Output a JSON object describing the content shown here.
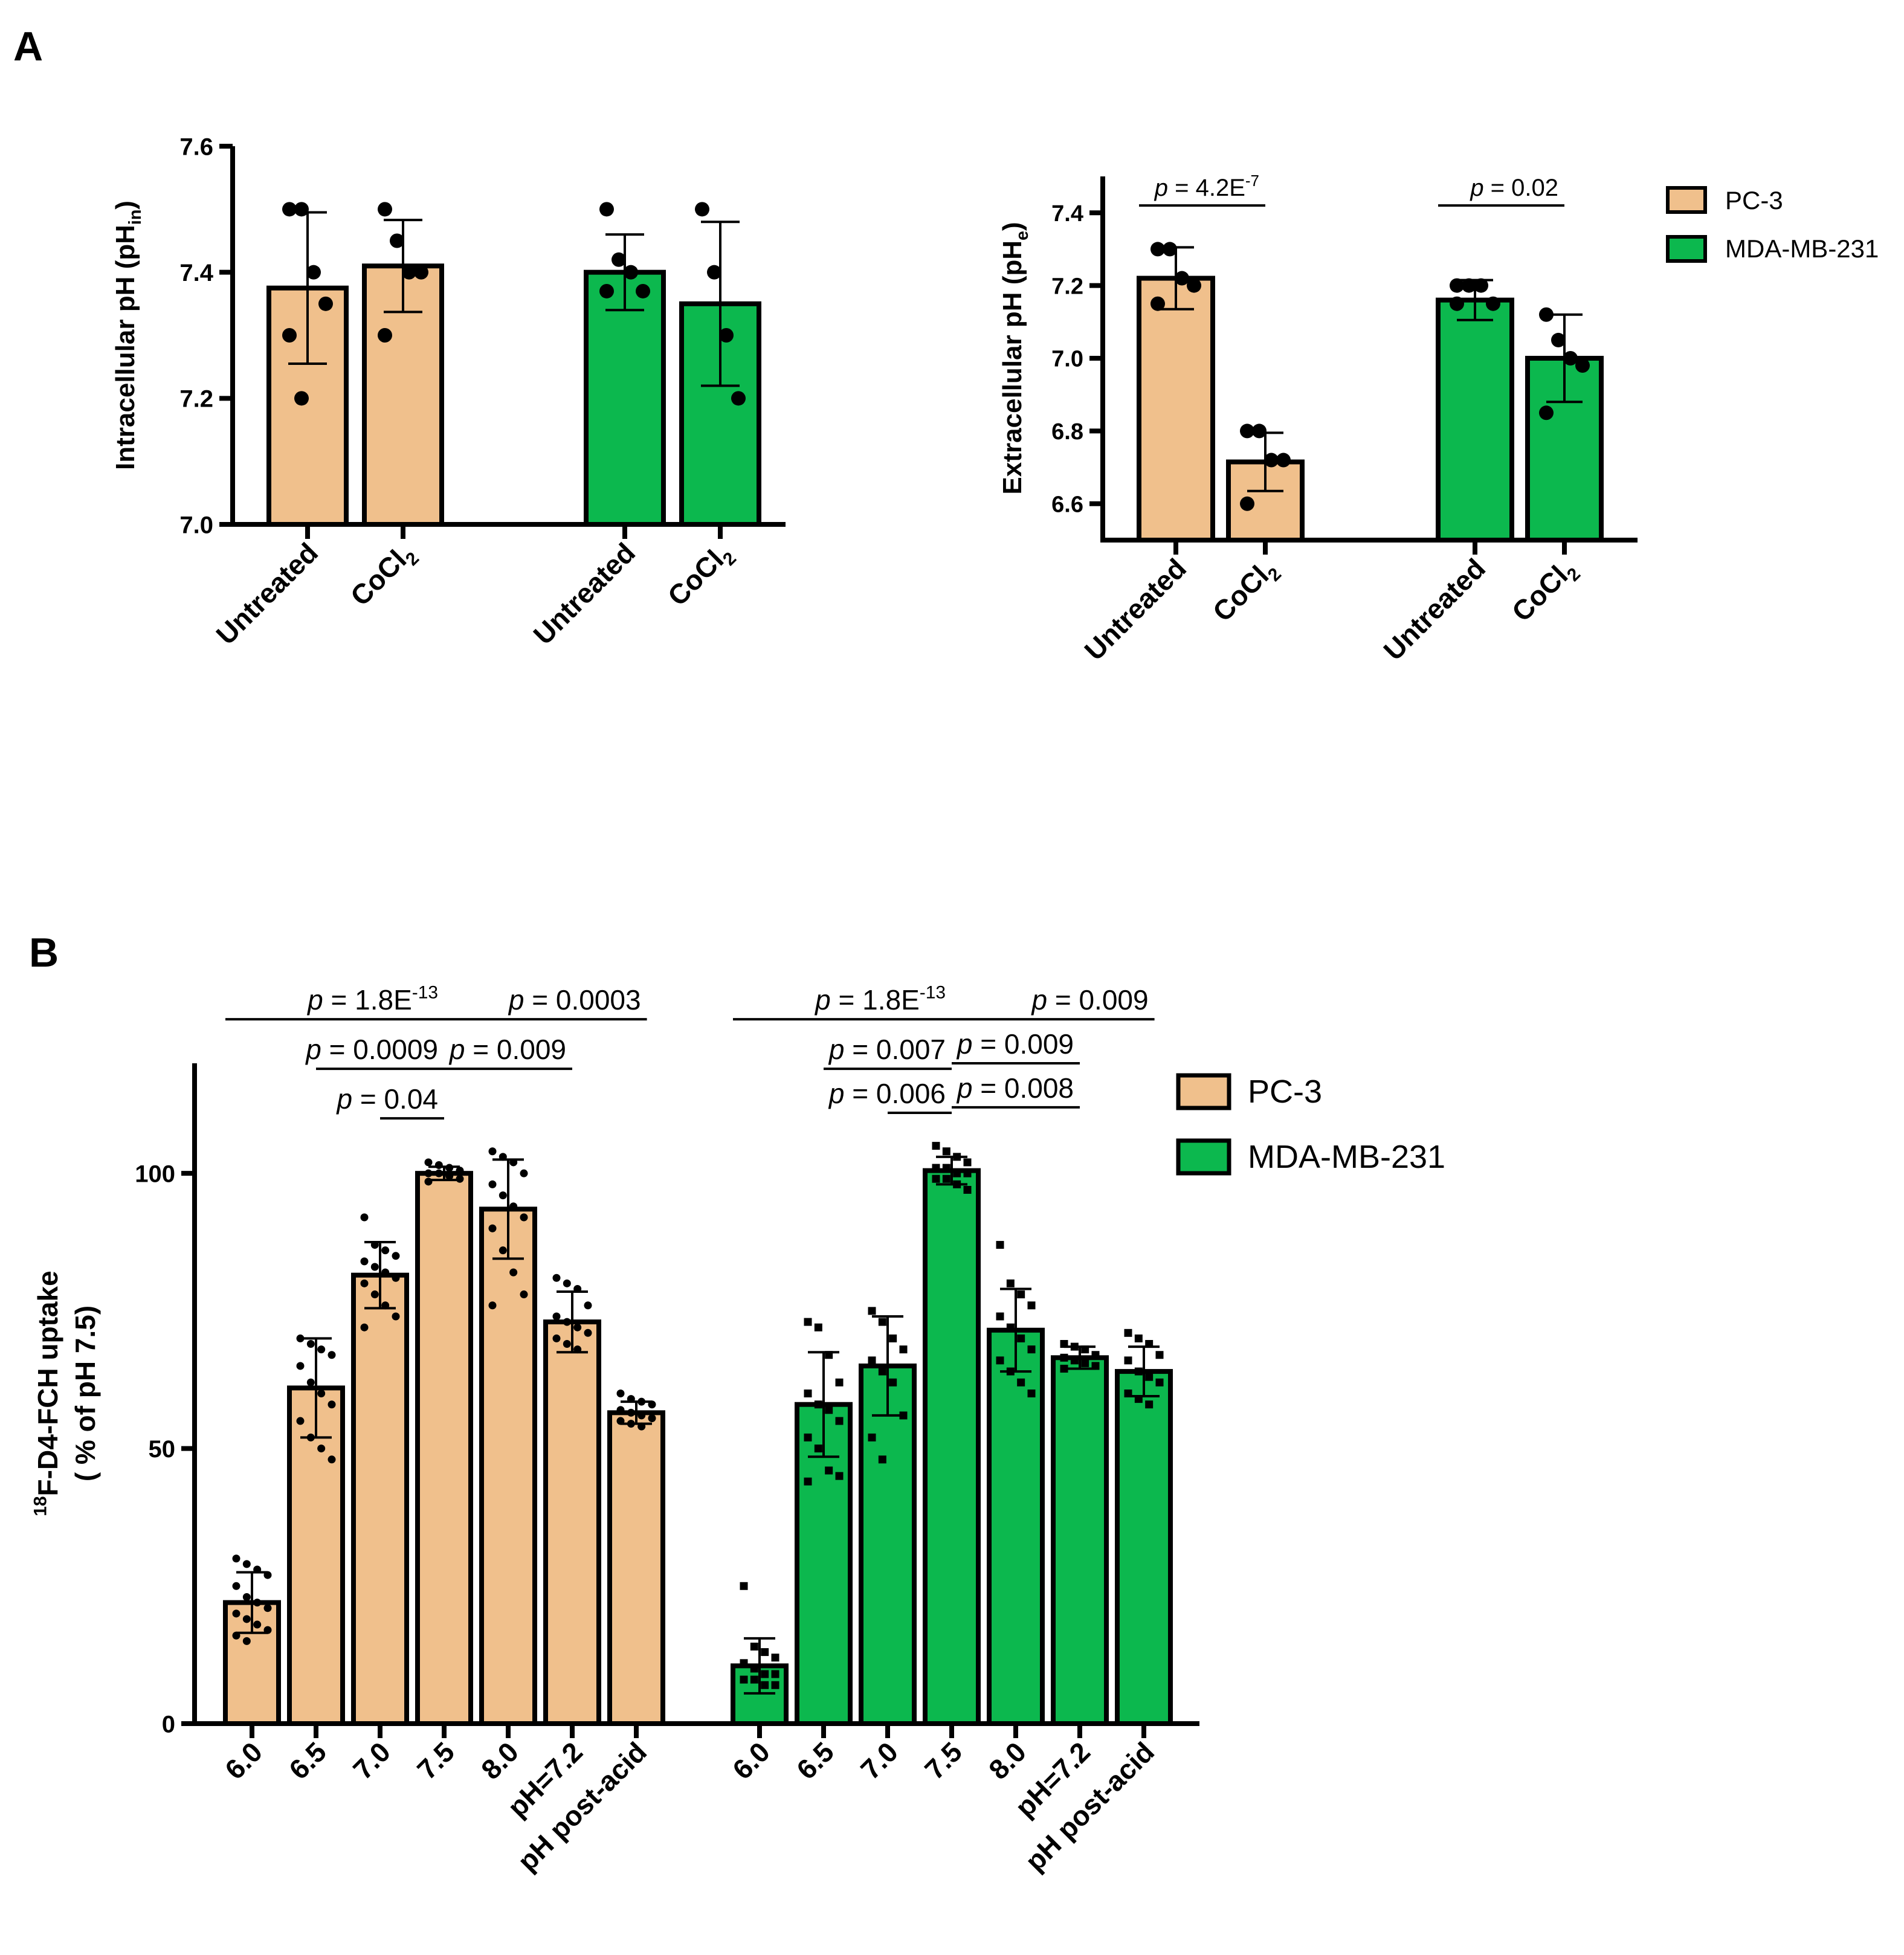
{
  "panel_labels": {
    "a": "A",
    "b": "B"
  },
  "legend": {
    "pc3_label": "PC-3",
    "mda_label": "MDA-MB-231"
  },
  "colors": {
    "pc3": "#f0c08c",
    "mda": "#0cb84e",
    "stroke": "#000000"
  },
  "chart_data": [
    {
      "id": "A-left",
      "type": "bar",
      "ylabel": {
        "main": "Intracellular pH (pH",
        "sub": "in",
        "close": ")"
      },
      "ylim": [
        7.0,
        7.6
      ],
      "yticks": [
        7.0,
        7.2,
        7.4,
        7.6
      ],
      "ytick_labels": [
        "7.0",
        "7.2",
        "7.4",
        "7.6"
      ],
      "groups": [
        {
          "series": "PC-3",
          "bars": [
            {
              "label": "Untreated",
              "sub": "",
              "mean": 7.375,
              "sd": 0.12,
              "points": [
                7.5,
                7.5,
                7.4,
                7.35,
                7.3,
                7.2
              ]
            },
            {
              "label": "CoCl",
              "sub": "2",
              "mean": 7.41,
              "sd": 0.073,
              "points": [
                7.5,
                7.45,
                7.4,
                7.4,
                7.3
              ]
            }
          ]
        },
        {
          "series": "MDA-MB-231",
          "bars": [
            {
              "label": "Untreated",
              "sub": "",
              "mean": 7.4,
              "sd": 0.06,
              "points": [
                7.5,
                7.42,
                7.4,
                7.37,
                7.37
              ]
            },
            {
              "label": "CoCl",
              "sub": "2",
              "mean": 7.35,
              "sd": 0.13,
              "points": [
                7.5,
                7.4,
                7.3,
                7.2
              ]
            }
          ]
        }
      ],
      "annotations": []
    },
    {
      "id": "A-right",
      "type": "bar",
      "ylabel": {
        "main": "Extracellular pH (pH",
        "sub": "e",
        "close": ")"
      },
      "ylim": [
        6.5,
        7.5
      ],
      "yticks": [
        6.6,
        6.8,
        7.0,
        7.2,
        7.4
      ],
      "ytick_labels": [
        "6.6",
        "6.8",
        "7.0",
        "7.2",
        "7.4"
      ],
      "groups": [
        {
          "series": "PC-3",
          "bars": [
            {
              "label": "Untreated",
              "sub": "",
              "mean": 7.22,
              "sd": 0.085,
              "points": [
                7.3,
                7.3,
                7.22,
                7.2,
                7.15
              ]
            },
            {
              "label": "CoCl",
              "sub": "2",
              "mean": 6.715,
              "sd": 0.08,
              "points": [
                6.8,
                6.8,
                6.72,
                6.72,
                6.6
              ]
            }
          ]
        },
        {
          "series": "MDA-MB-231",
          "bars": [
            {
              "label": "Untreated",
              "sub": "",
              "mean": 7.16,
              "sd": 0.055,
              "points": [
                7.2,
                7.2,
                7.2,
                7.15,
                7.15
              ]
            },
            {
              "label": "CoCl",
              "sub": "2",
              "mean": 7.0,
              "sd": 0.12,
              "points": [
                7.12,
                7.05,
                7.0,
                6.98,
                6.85
              ]
            }
          ]
        }
      ],
      "annotations": [
        {
          "prefix": "p",
          "text": " = 4.2E",
          "sup": "-7",
          "from": [
            0,
            0
          ],
          "to": [
            0,
            1
          ],
          "yvalue": 7.42
        },
        {
          "prefix": "p",
          "text": " = 0.02",
          "sup": "",
          "from": [
            1,
            0
          ],
          "to": [
            1,
            1
          ],
          "yvalue": 7.42
        }
      ]
    },
    {
      "id": "B",
      "type": "bar",
      "ylabel": {
        "line1_sup": "18",
        "line1": "F-D4-FCH uptake",
        "line2": "( % of pH 7.5)"
      },
      "ylim": [
        0,
        120
      ],
      "yticks": [
        0,
        50,
        100
      ],
      "ytick_labels": [
        "0",
        "50",
        "100"
      ],
      "groups": [
        {
          "series": "PC-3",
          "bars": [
            {
              "label": "6.0",
              "sub": "",
              "mean": 22,
              "sd": 5.5,
              "points": [
                30,
                29,
                28,
                27,
                25,
                23,
                22,
                21,
                20,
                19,
                18,
                17,
                16,
                15
              ]
            },
            {
              "label": "6.5",
              "sub": "",
              "mean": 61,
              "sd": 9,
              "points": [
                70,
                69,
                68,
                67,
                65,
                62,
                60,
                58,
                55,
                52,
                50,
                48
              ]
            },
            {
              "label": "7.0",
              "sub": "",
              "mean": 81.5,
              "sd": 6,
              "points": [
                92,
                87,
                86,
                85,
                84,
                83,
                82,
                81,
                80,
                78,
                76,
                74,
                72
              ]
            },
            {
              "label": "7.5",
              "sub": "",
              "mean": 100,
              "sd": 1.2,
              "points": [
                102,
                101.5,
                101,
                100.5,
                100,
                100,
                99.5,
                99,
                98.5
              ]
            },
            {
              "label": "8.0",
              "sub": "",
              "mean": 93.5,
              "sd": 9,
              "points": [
                104,
                103,
                102,
                100,
                98,
                96,
                94,
                92,
                90,
                86,
                82,
                78,
                76
              ]
            },
            {
              "label": "pH=7.2",
              "sub": "",
              "mean": 73,
              "sd": 5.5,
              "points": [
                81,
                80,
                79,
                76,
                74,
                73,
                72,
                71,
                70,
                69,
                68
              ]
            },
            {
              "label": "pH post-acid",
              "sub": "",
              "mean": 56.5,
              "sd": 2,
              "points": [
                60,
                59,
                58.5,
                58,
                57,
                56.5,
                56,
                55.5,
                55,
                54.5,
                54
              ]
            }
          ]
        },
        {
          "series": "MDA-MB-231",
          "bars": [
            {
              "label": "6.0",
              "sub": "",
              "mean": 10.5,
              "sd": 5,
              "points": [
                25,
                14,
                13,
                12,
                11,
                10,
                9,
                9,
                8,
                8,
                7,
                7
              ]
            },
            {
              "label": "6.5",
              "sub": "",
              "mean": 58,
              "sd": 9.5,
              "points": [
                73,
                72,
                67,
                62,
                60,
                58,
                57,
                55,
                52,
                50,
                46,
                45,
                44
              ]
            },
            {
              "label": "7.0",
              "sub": "",
              "mean": 65,
              "sd": 9,
              "points": [
                75,
                73,
                70,
                68,
                66,
                64,
                62,
                56,
                52,
                48
              ]
            },
            {
              "label": "7.5",
              "sub": "",
              "mean": 100.5,
              "sd": 2.5,
              "points": [
                105,
                104,
                103,
                102,
                101,
                101,
                100,
                100,
                99,
                99,
                98,
                97
              ]
            },
            {
              "label": "8.0",
              "sub": "",
              "mean": 71.5,
              "sd": 7.5,
              "points": [
                87,
                80,
                78,
                76,
                74,
                72,
                70,
                68,
                66,
                64,
                62,
                60
              ]
            },
            {
              "label": "pH=7.2",
              "sub": "",
              "mean": 66.5,
              "sd": 2,
              "points": [
                69,
                68.5,
                68,
                67,
                66.5,
                66,
                65.5,
                65,
                64.5
              ]
            },
            {
              "label": "pH post-acid",
              "sub": "",
              "mean": 64,
              "sd": 4.5,
              "points": [
                71,
                70,
                69,
                67,
                66,
                64,
                63,
                62,
                60,
                59,
                58
              ]
            }
          ]
        }
      ],
      "annotations": [
        {
          "prefix": "p",
          "text": " = 1.8E",
          "sup": "-13",
          "from": [
            0,
            0
          ],
          "to": [
            0,
            3
          ],
          "yvalue": 128
        },
        {
          "prefix": "p",
          "text": " = 0.0009",
          "sup": "",
          "from": [
            0,
            1
          ],
          "to": [
            0,
            3
          ],
          "yvalue": 119
        },
        {
          "prefix": "p",
          "text": " = 0.04",
          "sup": "",
          "from": [
            0,
            2
          ],
          "to": [
            0,
            3
          ],
          "yvalue": 110
        },
        {
          "prefix": "p",
          "text": " = 0.0003",
          "sup": "",
          "from": [
            0,
            3
          ],
          "to": [
            0,
            6
          ],
          "yvalue": 128
        },
        {
          "prefix": "p",
          "text": " = 0.009",
          "sup": "",
          "from": [
            0,
            3
          ],
          "to": [
            0,
            5
          ],
          "yvalue": 119
        },
        {
          "prefix": "p",
          "text": " = 1.8E",
          "sup": "-13",
          "from": [
            1,
            0
          ],
          "to": [
            1,
            3
          ],
          "yvalue": 128
        },
        {
          "prefix": "p",
          "text": " = 0.007",
          "sup": "",
          "from": [
            1,
            1
          ],
          "to": [
            1,
            3
          ],
          "yvalue": 119
        },
        {
          "prefix": "p",
          "text": " = 0.006",
          "sup": "",
          "from": [
            1,
            2
          ],
          "to": [
            1,
            3
          ],
          "yvalue": 111
        },
        {
          "prefix": "p",
          "text": " = 0.009",
          "sup": "",
          "from": [
            1,
            3
          ],
          "to": [
            1,
            6
          ],
          "yvalue": 128
        },
        {
          "prefix": "p",
          "text": " = 0.009",
          "sup": "",
          "from": [
            1,
            3
          ],
          "to": [
            1,
            5
          ],
          "yvalue": 120
        },
        {
          "prefix": "p",
          "text": " = 0.008",
          "sup": "",
          "from": [
            1,
            3
          ],
          "to": [
            1,
            5
          ],
          "yvalue": 112
        }
      ]
    }
  ]
}
